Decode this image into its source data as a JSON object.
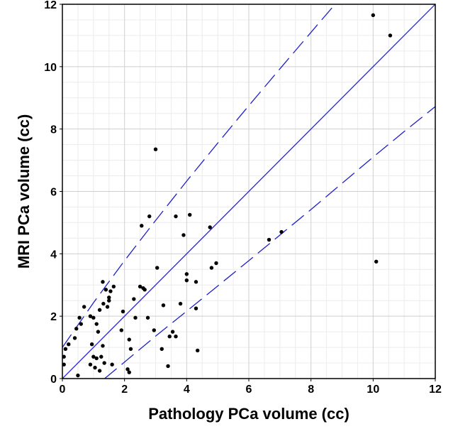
{
  "chart_data": {
    "type": "scatter",
    "title": "",
    "xlabel": "Pathology PCa volume (cc)",
    "ylabel": "MRI PCa volume (cc)",
    "xlim": [
      0,
      12
    ],
    "ylim": [
      0,
      12
    ],
    "xticks": [
      0,
      2,
      4,
      6,
      8,
      10,
      12
    ],
    "yticks": [
      0,
      2,
      4,
      6,
      8,
      10,
      12
    ],
    "minor_step": 0.5,
    "grid": true,
    "colors": {
      "identity_line": "#2626e0",
      "band_line": "#1f1fc8",
      "points": "#000000",
      "grid_major": "#cfcfcf",
      "grid_minor": "#ececec"
    },
    "identity_line": {
      "name": "line of identity",
      "x": [
        0,
        12
      ],
      "y": [
        0,
        12
      ]
    },
    "limits_upper": {
      "name": "upper limit",
      "x": [
        0,
        1,
        2,
        3,
        4,
        5,
        6,
        7,
        8,
        9,
        9.12
      ],
      "y": [
        1.0,
        2.43,
        3.78,
        5.07,
        6.33,
        7.55,
        8.75,
        9.93,
        11.1,
        12.26,
        12.4
      ]
    },
    "limits_lower": {
      "name": "lower limit",
      "x": [
        1.36,
        2,
        3,
        4,
        5,
        6,
        7,
        8,
        9,
        10,
        11,
        12
      ],
      "y": [
        0,
        0.53,
        1.36,
        2.16,
        2.97,
        3.78,
        4.6,
        5.42,
        6.26,
        7.1,
        7.92,
        8.72
      ]
    },
    "points": {
      "x": [
        0.05,
        0.05,
        0.1,
        0.2,
        0.4,
        0.45,
        0.5,
        0.55,
        0.6,
        0.7,
        0.9,
        0.9,
        0.95,
        1.0,
        1.0,
        1.05,
        1.1,
        1.1,
        1.15,
        1.2,
        1.2,
        1.25,
        1.3,
        1.3,
        1.32,
        1.35,
        1.4,
        1.45,
        1.5,
        1.5,
        1.55,
        1.6,
        1.65,
        1.9,
        1.95,
        2.1,
        2.15,
        2.15,
        2.2,
        2.3,
        2.35,
        2.5,
        2.55,
        2.6,
        2.65,
        2.75,
        2.8,
        2.95,
        3.0,
        3.05,
        3.2,
        3.25,
        3.4,
        3.45,
        3.55,
        3.65,
        3.65,
        3.8,
        3.9,
        4.0,
        4.0,
        4.1,
        4.3,
        4.3,
        4.35,
        4.75,
        4.8,
        4.95,
        6.65,
        7.05,
        10.0,
        10.1,
        10.55
      ],
      "y": [
        0.45,
        0.7,
        0.95,
        1.1,
        1.3,
        1.6,
        0.1,
        1.95,
        1.75,
        2.3,
        2.0,
        0.45,
        1.1,
        1.95,
        0.7,
        0.35,
        0.65,
        1.75,
        1.5,
        0.25,
        2.2,
        0.7,
        3.1,
        1.05,
        2.4,
        0.5,
        2.85,
        2.3,
        2.6,
        2.5,
        2.8,
        0.45,
        2.95,
        1.55,
        2.15,
        0.3,
        0.2,
        1.25,
        0.95,
        2.55,
        1.95,
        2.95,
        4.9,
        2.9,
        2.85,
        1.95,
        5.2,
        1.55,
        7.35,
        3.55,
        0.95,
        2.35,
        0.4,
        1.35,
        1.5,
        1.35,
        5.2,
        2.4,
        4.6,
        3.35,
        3.15,
        5.25,
        3.1,
        2.25,
        0.9,
        4.85,
        3.55,
        3.7,
        4.45,
        4.7,
        11.65,
        3.75,
        11.0
      ]
    }
  }
}
